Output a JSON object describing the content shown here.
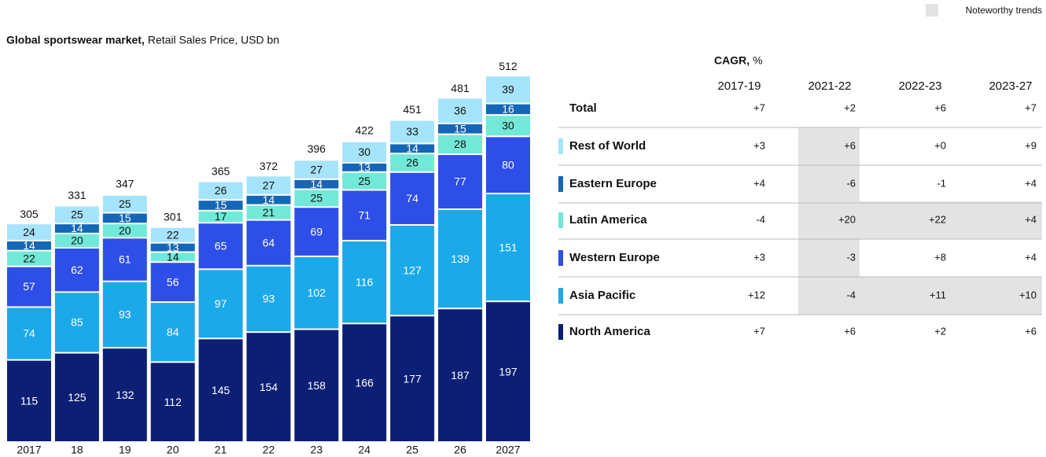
{
  "chart_data": {
    "type": "stacked_bar",
    "title": "Global sportswear market,",
    "subtitle": "Retail Sales Price, USD bn",
    "categories": [
      "2017",
      "18",
      "19",
      "20",
      "21",
      "22",
      "23",
      "24",
      "25",
      "26",
      "2027"
    ],
    "totals": [
      305,
      331,
      347,
      301,
      365,
      372,
      396,
      422,
      451,
      481,
      512
    ],
    "series": [
      {
        "name": "North America",
        "color": "#0c1f74",
        "values": [
          115,
          125,
          132,
          112,
          145,
          154,
          158,
          166,
          177,
          187,
          197
        ],
        "cagr": [
          "+7",
          "+6",
          "+2",
          "+6"
        ],
        "highlight": [
          false,
          false,
          false,
          false
        ]
      },
      {
        "name": "Asia Pacific",
        "color": "#1ba9ea",
        "values": [
          74,
          85,
          93,
          84,
          97,
          93,
          102,
          116,
          127,
          139,
          151
        ],
        "cagr": [
          "+12",
          "-4",
          "+11",
          "+10"
        ],
        "highlight": [
          false,
          true,
          true,
          true
        ]
      },
      {
        "name": "Western Europe",
        "color": "#2e4ee8",
        "values": [
          57,
          62,
          61,
          56,
          65,
          64,
          69,
          71,
          74,
          77,
          80
        ],
        "cagr": [
          "+3",
          "-3",
          "+8",
          "+4"
        ],
        "highlight": [
          false,
          true,
          false,
          false
        ]
      },
      {
        "name": "Latin America",
        "color": "#72e8d8",
        "values": [
          22,
          20,
          20,
          14,
          17,
          21,
          25,
          25,
          26,
          28,
          30
        ],
        "cagr": [
          "-4",
          "+20",
          "+22",
          "+4"
        ],
        "highlight": [
          false,
          true,
          true,
          true
        ]
      },
      {
        "name": "Eastern Europe",
        "color": "#1467b6",
        "values": [
          14,
          14,
          15,
          13,
          15,
          14,
          14,
          13,
          14,
          15,
          16
        ],
        "cagr": [
          "+4",
          "-6",
          "-1",
          "+4"
        ],
        "highlight": [
          false,
          true,
          false,
          false
        ]
      },
      {
        "name": "Rest of World",
        "color": "#a6e4fb",
        "values": [
          24,
          25,
          25,
          22,
          26,
          27,
          27,
          30,
          33,
          36,
          39
        ],
        "cagr": [
          "+3",
          "+6",
          "+0",
          "+9"
        ],
        "highlight": [
          false,
          true,
          false,
          false
        ]
      }
    ],
    "light_labels": [
      "North America",
      "Asia Pacific",
      "Western Europe",
      "Eastern Europe"
    ]
  },
  "cagr_table": {
    "title": "CAGR,",
    "unit": "%",
    "periods": [
      "2017-19",
      "2021-22",
      "2022-23",
      "2023-27"
    ],
    "total": {
      "label": "Total",
      "values": [
        "+7",
        "+2",
        "+6",
        "+7"
      ]
    },
    "highlight_color": "#e3e3e3",
    "note": "Noteworthy trends"
  }
}
